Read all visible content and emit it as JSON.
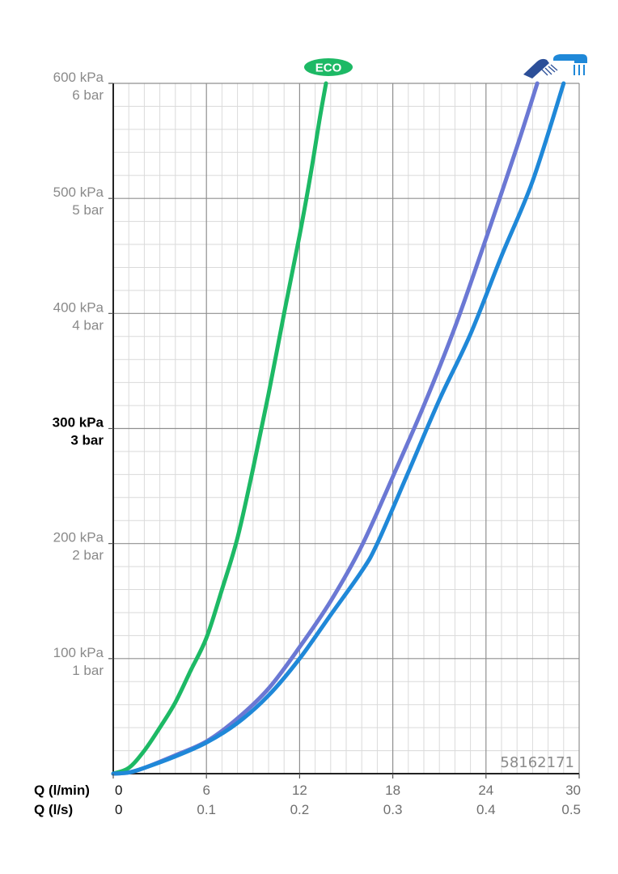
{
  "chart_data": {
    "type": "line",
    "title": "",
    "article_number": "58162171",
    "x_axis_label": "Q (l/min)",
    "x_axis_secondary_label": "Q (l/s)",
    "x_ticks": [
      "0",
      "6",
      "12",
      "18",
      "24",
      "30"
    ],
    "x_secondary_ticks": [
      "0",
      "0.1",
      "0.2",
      "0.3",
      "0.4",
      "0.5"
    ],
    "xlim": [
      0,
      30
    ],
    "ylim": [
      0,
      600
    ],
    "y_unit": "kPa",
    "y_ticks": [
      {
        "value": 600,
        "kpa": "600 kPa",
        "bar": "6 bar",
        "bold": false
      },
      {
        "value": 500,
        "kpa": "500 kPa",
        "bar": "5 bar",
        "bold": false
      },
      {
        "value": 400,
        "kpa": "400 kPa",
        "bar": "4 bar",
        "bold": false
      },
      {
        "value": 300,
        "kpa": "300 kPa",
        "bar": "3 bar",
        "bold": true
      },
      {
        "value": 200,
        "kpa": "200 kPa",
        "bar": "2 bar",
        "bold": false
      },
      {
        "value": 100,
        "kpa": "100 kPa",
        "bar": "1 bar",
        "bold": false
      }
    ],
    "grid": true,
    "legend": "icons above plot, top",
    "eco_label": "ECO",
    "series": [
      {
        "name": "ECO",
        "color": "#1db965",
        "points": [
          [
            0,
            0
          ],
          [
            1,
            5
          ],
          [
            2,
            20
          ],
          [
            3,
            40
          ],
          [
            4,
            62
          ],
          [
            5,
            90
          ],
          [
            6,
            118
          ],
          [
            7,
            160
          ],
          [
            8,
            205
          ],
          [
            9,
            265
          ],
          [
            10,
            330
          ],
          [
            11,
            400
          ],
          [
            12,
            468
          ],
          [
            12.7,
            520
          ],
          [
            13.3,
            570
          ],
          [
            13.7,
            600
          ]
        ]
      },
      {
        "name": "",
        "icon": "shower-head-angled-icon",
        "color": "#6b78d4",
        "points": [
          [
            0,
            0
          ],
          [
            1,
            1
          ],
          [
            2,
            5
          ],
          [
            4,
            16
          ],
          [
            6,
            28
          ],
          [
            8,
            48
          ],
          [
            10,
            74
          ],
          [
            12,
            110
          ],
          [
            14,
            150
          ],
          [
            16,
            198
          ],
          [
            18,
            258
          ],
          [
            20,
            320
          ],
          [
            22,
            388
          ],
          [
            24,
            465
          ],
          [
            26,
            545
          ],
          [
            27.3,
            600
          ]
        ]
      },
      {
        "name": "",
        "icon": "overhead-shower-icon",
        "color": "#1f88d8",
        "points": [
          [
            0,
            0
          ],
          [
            1,
            1
          ],
          [
            2,
            5
          ],
          [
            4,
            15
          ],
          [
            6,
            27
          ],
          [
            8,
            44
          ],
          [
            10,
            68
          ],
          [
            12,
            100
          ],
          [
            14,
            138
          ],
          [
            16,
            176
          ],
          [
            17,
            200
          ],
          [
            19,
            262
          ],
          [
            21,
            325
          ],
          [
            23,
            382
          ],
          [
            25,
            450
          ],
          [
            27,
            515
          ],
          [
            29,
            600
          ]
        ]
      }
    ]
  }
}
